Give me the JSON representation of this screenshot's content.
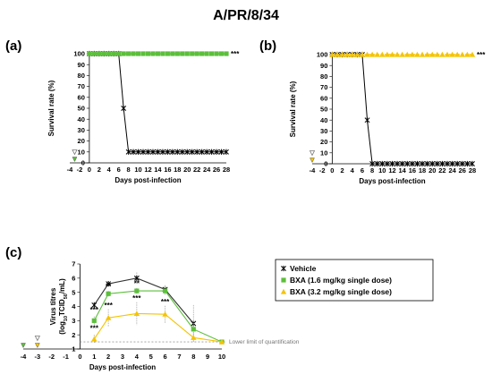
{
  "figure_title": "A/PR/8/34",
  "colors": {
    "vehicle": "#000000",
    "bxa_low": "#5cbf3b",
    "bxa_high": "#f5c400",
    "lloq_line": "#999999"
  },
  "chart_data": [
    {
      "panel": "(a)",
      "type": "line",
      "xlabel": "Days post-infection",
      "ylabel": "Survival rate (%)",
      "xlim": [
        -4,
        28
      ],
      "ylim": [
        0,
        100
      ],
      "xticks": [
        -4,
        -2,
        0,
        2,
        4,
        6,
        8,
        10,
        12,
        14,
        16,
        18,
        20,
        22,
        24,
        26,
        28
      ],
      "yticks": [
        0,
        10,
        20,
        30,
        40,
        50,
        60,
        70,
        80,
        90,
        100
      ],
      "series": [
        {
          "key": "vehicle",
          "x": [
            0,
            1,
            2,
            3,
            4,
            5,
            6,
            7,
            8,
            9,
            10,
            11,
            12,
            13,
            14,
            15,
            16,
            17,
            18,
            19,
            20,
            21,
            22,
            23,
            24,
            25,
            26,
            27,
            28
          ],
          "values": [
            100,
            100,
            100,
            100,
            100,
            100,
            100,
            50,
            10,
            10,
            10,
            10,
            10,
            10,
            10,
            10,
            10,
            10,
            10,
            10,
            10,
            10,
            10,
            10,
            10,
            10,
            10,
            10,
            10
          ]
        },
        {
          "key": "bxa_low",
          "x": [
            0,
            1,
            2,
            3,
            4,
            5,
            6,
            7,
            8,
            9,
            10,
            11,
            12,
            13,
            14,
            15,
            16,
            17,
            18,
            19,
            20,
            21,
            22,
            23,
            24,
            25,
            26,
            27,
            28
          ],
          "values": [
            100,
            100,
            100,
            100,
            100,
            100,
            100,
            100,
            100,
            100,
            100,
            100,
            100,
            100,
            100,
            100,
            100,
            100,
            100,
            100,
            100,
            100,
            100,
            100,
            100,
            100,
            100,
            100,
            100
          ]
        }
      ],
      "dosing_markers": [
        {
          "x": -3,
          "kind": "bxa_low"
        },
        {
          "x": -3,
          "kind": "open"
        }
      ],
      "significance": "***"
    },
    {
      "panel": "(b)",
      "type": "line",
      "xlabel": "Days post-infection",
      "ylabel": "Survival rate (%)",
      "xlim": [
        -4,
        28
      ],
      "ylim": [
        0,
        100
      ],
      "xticks": [
        -4,
        -2,
        0,
        2,
        4,
        6,
        8,
        10,
        12,
        14,
        16,
        18,
        20,
        22,
        24,
        26,
        28
      ],
      "yticks": [
        0,
        10,
        20,
        30,
        40,
        50,
        60,
        70,
        80,
        90,
        100
      ],
      "series": [
        {
          "key": "vehicle",
          "x": [
            0,
            1,
            2,
            3,
            4,
            5,
            6,
            7,
            8,
            9,
            10,
            11,
            12,
            13,
            14,
            15,
            16,
            17,
            18,
            19,
            20,
            21,
            22,
            23,
            24,
            25,
            26,
            27,
            28
          ],
          "values": [
            100,
            100,
            100,
            100,
            100,
            100,
            100,
            40,
            0,
            0,
            0,
            0,
            0,
            0,
            0,
            0,
            0,
            0,
            0,
            0,
            0,
            0,
            0,
            0,
            0,
            0,
            0,
            0,
            0
          ]
        },
        {
          "key": "bxa_high",
          "x": [
            0,
            1,
            2,
            3,
            4,
            5,
            6,
            7,
            8,
            9,
            10,
            11,
            12,
            13,
            14,
            15,
            16,
            17,
            18,
            19,
            20,
            21,
            22,
            23,
            24,
            25,
            26,
            27,
            28
          ],
          "values": [
            100,
            100,
            100,
            100,
            100,
            100,
            100,
            100,
            100,
            100,
            100,
            100,
            100,
            100,
            100,
            100,
            100,
            100,
            100,
            100,
            100,
            100,
            100,
            100,
            100,
            100,
            100,
            100,
            100
          ]
        }
      ],
      "dosing_markers": [
        {
          "x": -4,
          "kind": "bxa_high"
        },
        {
          "x": -4,
          "kind": "open"
        }
      ],
      "significance": "***"
    },
    {
      "panel": "(c)",
      "type": "line",
      "xlabel": "Days post-infection",
      "ylabel_main": "Virus titres",
      "ylabel_unit_pre": "(log",
      "ylabel_unit_sub": "10",
      "ylabel_unit_post": "TCID",
      "ylabel_unit_sub2": "50",
      "ylabel_unit_end": "/mL)",
      "xlim": [
        -4,
        10
      ],
      "ylim": [
        1,
        7
      ],
      "xticks": [
        -4,
        -3,
        -2,
        -1,
        0,
        1,
        2,
        3,
        4,
        5,
        6,
        7,
        8,
        9,
        10
      ],
      "yticks": [
        1,
        2,
        3,
        4,
        5,
        6,
        7
      ],
      "lloq": 1.5,
      "lloq_label": "Lower limit  of quantification",
      "series": [
        {
          "key": "vehicle",
          "name": "Vehicle",
          "x": [
            1,
            2,
            4,
            6,
            8
          ],
          "values": [
            4.1,
            5.6,
            6.0,
            5.2,
            2.8
          ],
          "err": [
            0.2,
            0.15,
            0.4,
            0.3,
            1.3
          ]
        },
        {
          "key": "bxa_low",
          "name": "BXA (1.6 mg/kg single dose)",
          "x": [
            1,
            2,
            4,
            6,
            8,
            10
          ],
          "values": [
            3.0,
            4.9,
            5.1,
            5.1,
            2.4,
            1.5
          ],
          "err": [
            0.3,
            0.2,
            0.2,
            0.3,
            0.6,
            0
          ]
        },
        {
          "key": "bxa_high",
          "name": "BXA (3.2 mg/kg single dose)",
          "x": [
            1,
            2,
            4,
            6,
            8,
            10
          ],
          "values": [
            1.7,
            3.2,
            3.5,
            3.45,
            1.8,
            1.5
          ],
          "err": [
            0.3,
            0.6,
            0.8,
            0.6,
            0.3,
            0
          ]
        }
      ],
      "annotations": [
        {
          "x": 1,
          "y": 3.6,
          "text": "***"
        },
        {
          "x": 1,
          "y": 2.3,
          "text": "***"
        },
        {
          "x": 2,
          "y": 5.25,
          "text": "**"
        },
        {
          "x": 2,
          "y": 3.9,
          "text": "***"
        },
        {
          "x": 4,
          "y": 5.45,
          "text": "**"
        },
        {
          "x": 4,
          "y": 4.4,
          "text": "***"
        },
        {
          "x": 6,
          "y": 4.15,
          "text": "***"
        }
      ],
      "dosing_markers": [
        {
          "x": -4,
          "kind": "bxa_low"
        },
        {
          "x": -3,
          "kind": "bxa_high"
        },
        {
          "x": -3,
          "kind": "open"
        }
      ]
    }
  ]
}
